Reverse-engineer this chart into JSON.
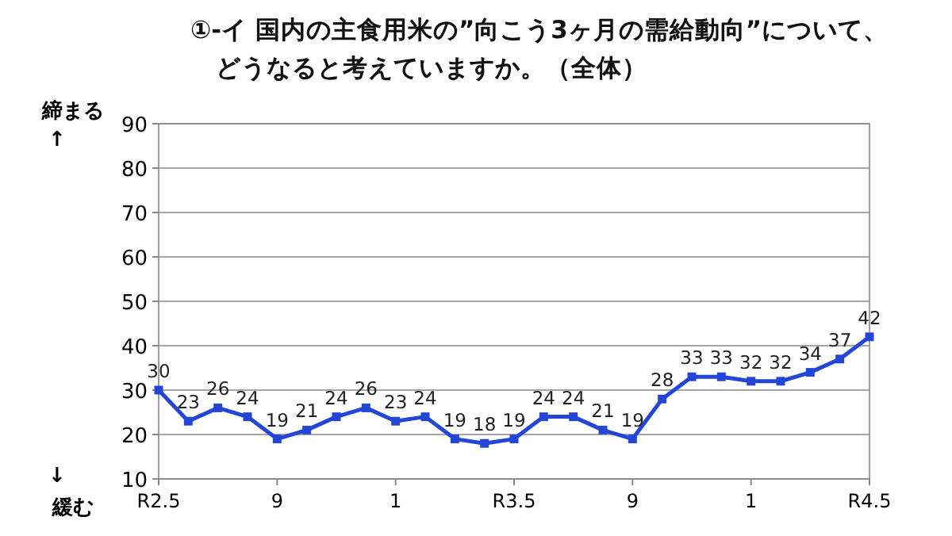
{
  "chart_data": {
    "type": "line",
    "title": "①-イ 国内の主食用米の”向こう3ヶ月の需給動向”について、",
    "subtitle": "どうなると考えていますか。（全体）",
    "categories": [
      "R2.5",
      null,
      null,
      null,
      "9",
      null,
      null,
      null,
      "1",
      null,
      null,
      null,
      "R3.5",
      null,
      null,
      null,
      "9",
      null,
      null,
      null,
      "1",
      null,
      null,
      null,
      "R4.5"
    ],
    "series": [
      {
        "color": "#2346d6",
        "values": [
          30,
          23,
          26,
          24,
          19,
          21,
          24,
          26,
          23,
          24,
          19,
          18,
          19,
          24,
          24,
          21,
          19,
          28,
          33,
          33,
          32,
          32,
          34,
          37,
          42
        ]
      }
    ],
    "ylim": [
      10,
      90
    ],
    "yticks": [
      10,
      20,
      30,
      40,
      50,
      60,
      70,
      80,
      90
    ],
    "grid": "y",
    "marker": "square",
    "data_labels": true,
    "annotations": [
      "締まる",
      "↑",
      "↓",
      "緩む"
    ]
  }
}
